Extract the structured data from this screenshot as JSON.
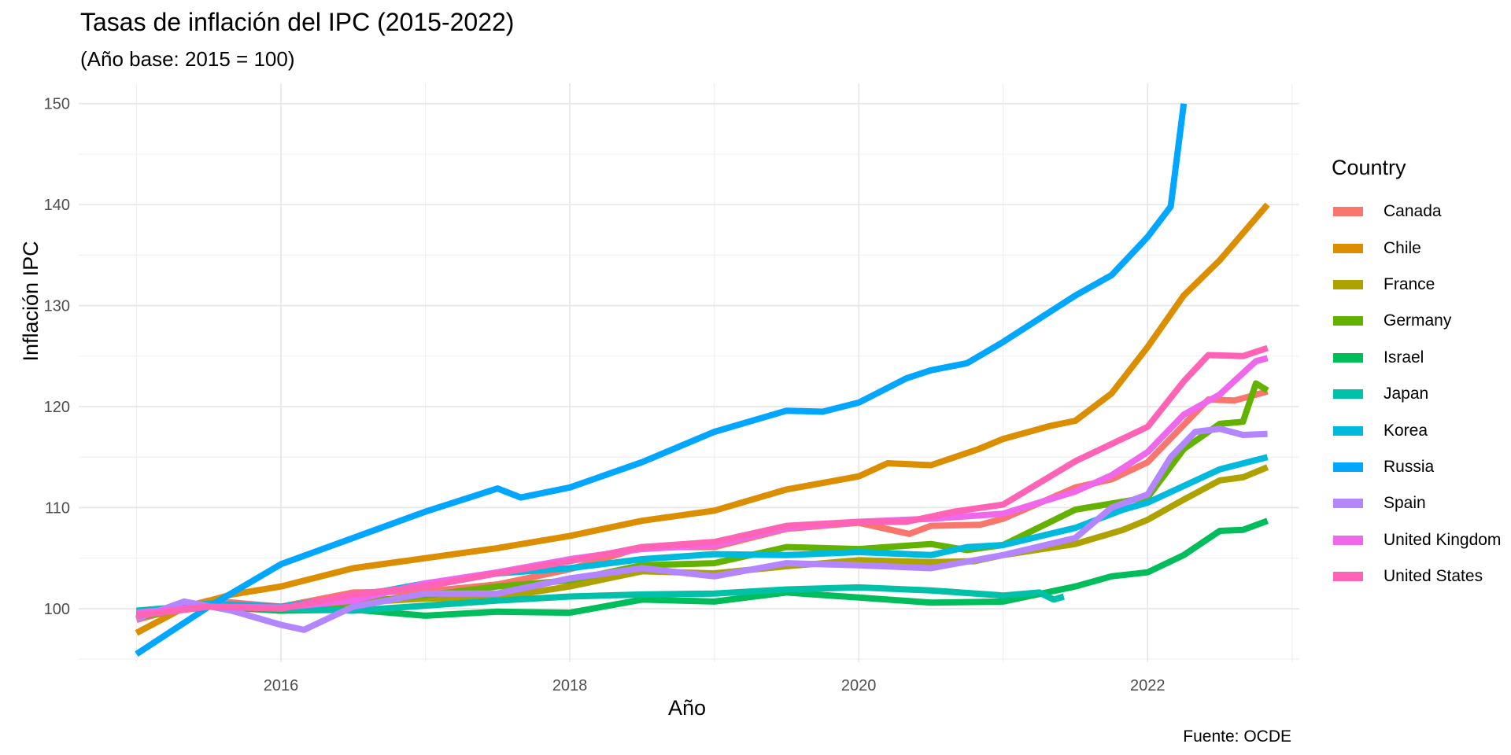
{
  "chart_data": {
    "type": "line",
    "title": "Tasas de inflación del IPC (2015-2022)",
    "subtitle": "(Año base: 2015 = 100)",
    "xlabel": "Año",
    "ylabel": "Inflación IPC",
    "caption": "Fuente: OCDE",
    "xlim": [
      2014.6,
      2023.05
    ],
    "ylim": [
      94.7,
      152
    ],
    "x_ticks": [
      2016,
      2018,
      2020,
      2022
    ],
    "y_ticks": [
      100,
      110,
      120,
      130,
      140,
      150
    ],
    "grid": true,
    "legend_title": "Country",
    "legend_position": "right",
    "series": [
      {
        "name": "Canada",
        "color": "#F8766D",
        "points": [
          [
            2015.0,
            98.9
          ],
          [
            2015.5,
            100.8
          ],
          [
            2016.0,
            100.2
          ],
          [
            2016.5,
            101.6
          ],
          [
            2017.0,
            101.7
          ],
          [
            2017.5,
            102.4
          ],
          [
            2018.0,
            103.9
          ],
          [
            2018.5,
            106.1
          ],
          [
            2019.0,
            106.1
          ],
          [
            2019.5,
            107.9
          ],
          [
            2020.0,
            108.5
          ],
          [
            2020.35,
            107.4
          ],
          [
            2020.5,
            108.2
          ],
          [
            2020.84,
            108.3
          ],
          [
            2021.0,
            108.9
          ],
          [
            2021.5,
            112.0
          ],
          [
            2021.75,
            112.8
          ],
          [
            2022.0,
            114.5
          ],
          [
            2022.42,
            120.7
          ],
          [
            2022.6,
            120.6
          ],
          [
            2022.83,
            121.5
          ]
        ]
      },
      {
        "name": "Chile",
        "color": "#DB8E00",
        "points": [
          [
            2015.0,
            97.6
          ],
          [
            2015.33,
            100.1
          ],
          [
            2015.66,
            101.4
          ],
          [
            2016.0,
            102.2
          ],
          [
            2016.5,
            104.0
          ],
          [
            2017.0,
            105.0
          ],
          [
            2017.5,
            106.0
          ],
          [
            2018.0,
            107.2
          ],
          [
            2018.5,
            108.7
          ],
          [
            2019.0,
            109.7
          ],
          [
            2019.5,
            111.8
          ],
          [
            2020.0,
            113.1
          ],
          [
            2020.2,
            114.4
          ],
          [
            2020.5,
            114.2
          ],
          [
            2020.83,
            115.8
          ],
          [
            2021.0,
            116.8
          ],
          [
            2021.33,
            118.1
          ],
          [
            2021.5,
            118.6
          ],
          [
            2021.75,
            121.3
          ],
          [
            2022.0,
            125.9
          ],
          [
            2022.25,
            131.0
          ],
          [
            2022.5,
            134.5
          ],
          [
            2022.83,
            140.0
          ]
        ]
      },
      {
        "name": "France",
        "color": "#AEA200",
        "points": [
          [
            2015.0,
            99.3
          ],
          [
            2015.5,
            100.2
          ],
          [
            2016.0,
            99.8
          ],
          [
            2016.5,
            100.6
          ],
          [
            2017.0,
            101.0
          ],
          [
            2017.5,
            101.1
          ],
          [
            2018.0,
            102.2
          ],
          [
            2018.5,
            103.7
          ],
          [
            2019.0,
            103.5
          ],
          [
            2019.5,
            104.2
          ],
          [
            2020.0,
            104.8
          ],
          [
            2020.5,
            104.6
          ],
          [
            2020.8,
            104.7
          ],
          [
            2021.0,
            105.3
          ],
          [
            2021.5,
            106.4
          ],
          [
            2021.83,
            107.8
          ],
          [
            2022.0,
            108.8
          ],
          [
            2022.25,
            110.8
          ],
          [
            2022.5,
            112.7
          ],
          [
            2022.66,
            113.0
          ],
          [
            2022.83,
            114.0
          ]
        ]
      },
      {
        "name": "Germany",
        "color": "#64B200",
        "points": [
          [
            2015.0,
            99.1
          ],
          [
            2015.5,
            100.4
          ],
          [
            2016.0,
            99.8
          ],
          [
            2016.5,
            100.6
          ],
          [
            2017.0,
            101.3
          ],
          [
            2017.5,
            102.2
          ],
          [
            2018.0,
            102.8
          ],
          [
            2018.5,
            104.3
          ],
          [
            2019.0,
            104.5
          ],
          [
            2019.5,
            106.1
          ],
          [
            2020.0,
            105.9
          ],
          [
            2020.5,
            106.4
          ],
          [
            2020.75,
            105.8
          ],
          [
            2021.0,
            106.3
          ],
          [
            2021.5,
            109.8
          ],
          [
            2022.0,
            111.0
          ],
          [
            2022.25,
            115.8
          ],
          [
            2022.5,
            118.3
          ],
          [
            2022.66,
            118.5
          ],
          [
            2022.75,
            122.3
          ],
          [
            2022.83,
            121.6
          ]
        ]
      },
      {
        "name": "Israel",
        "color": "#00BD5C",
        "points": [
          [
            2015.0,
            99.4
          ],
          [
            2015.5,
            100.3
          ],
          [
            2016.0,
            99.8
          ],
          [
            2016.5,
            99.9
          ],
          [
            2017.0,
            99.3
          ],
          [
            2017.5,
            99.7
          ],
          [
            2018.0,
            99.6
          ],
          [
            2018.5,
            100.9
          ],
          [
            2019.0,
            100.7
          ],
          [
            2019.5,
            101.6
          ],
          [
            2020.0,
            101.1
          ],
          [
            2020.5,
            100.6
          ],
          [
            2021.0,
            100.7
          ],
          [
            2021.5,
            102.2
          ],
          [
            2021.75,
            103.2
          ],
          [
            2022.0,
            103.6
          ],
          [
            2022.25,
            105.3
          ],
          [
            2022.5,
            107.7
          ],
          [
            2022.66,
            107.8
          ],
          [
            2022.83,
            108.7
          ]
        ]
      },
      {
        "name": "Japan",
        "color": "#00C1A7",
        "points": [
          [
            2015.0,
            99.8
          ],
          [
            2015.5,
            100.4
          ],
          [
            2016.0,
            100.0
          ],
          [
            2016.5,
            99.8
          ],
          [
            2017.0,
            100.3
          ],
          [
            2017.5,
            100.8
          ],
          [
            2018.0,
            101.2
          ],
          [
            2018.5,
            101.4
          ],
          [
            2019.0,
            101.5
          ],
          [
            2019.5,
            101.9
          ],
          [
            2020.0,
            102.1
          ],
          [
            2020.5,
            101.8
          ],
          [
            2021.0,
            101.3
          ],
          [
            2021.25,
            101.6
          ],
          [
            2021.35,
            100.9
          ],
          [
            2021.42,
            101.2
          ]
        ]
      },
      {
        "name": "Korea",
        "color": "#00BADE",
        "points": [
          [
            2015.0,
            99.6
          ],
          [
            2015.5,
            100.5
          ],
          [
            2016.0,
            100.2
          ],
          [
            2016.5,
            101.2
          ],
          [
            2017.0,
            102.5
          ],
          [
            2017.5,
            103.5
          ],
          [
            2018.0,
            104.0
          ],
          [
            2018.5,
            104.9
          ],
          [
            2019.0,
            105.4
          ],
          [
            2019.5,
            105.3
          ],
          [
            2020.0,
            105.6
          ],
          [
            2020.5,
            105.3
          ],
          [
            2020.75,
            106.1
          ],
          [
            2021.0,
            106.3
          ],
          [
            2021.5,
            108.0
          ],
          [
            2021.83,
            109.8
          ],
          [
            2022.0,
            110.5
          ],
          [
            2022.5,
            113.8
          ],
          [
            2022.83,
            115.0
          ]
        ]
      },
      {
        "name": "Russia",
        "color": "#00A6FF",
        "points": [
          [
            2015.0,
            95.5
          ],
          [
            2015.5,
            100.2
          ],
          [
            2016.0,
            104.4
          ],
          [
            2016.5,
            107.0
          ],
          [
            2017.0,
            109.6
          ],
          [
            2017.5,
            111.9
          ],
          [
            2017.66,
            111.0
          ],
          [
            2018.0,
            112.0
          ],
          [
            2018.5,
            114.5
          ],
          [
            2019.0,
            117.5
          ],
          [
            2019.5,
            119.6
          ],
          [
            2019.75,
            119.5
          ],
          [
            2020.0,
            120.4
          ],
          [
            2020.33,
            122.8
          ],
          [
            2020.5,
            123.6
          ],
          [
            2020.75,
            124.3
          ],
          [
            2021.0,
            126.4
          ],
          [
            2021.5,
            131.0
          ],
          [
            2021.75,
            133.0
          ],
          [
            2022.0,
            136.8
          ],
          [
            2022.16,
            139.8
          ],
          [
            2022.25,
            150.0
          ]
        ]
      },
      {
        "name": "Spain",
        "color": "#B385FF",
        "points": [
          [
            2015.0,
            99.0
          ],
          [
            2015.33,
            100.7
          ],
          [
            2015.66,
            99.8
          ],
          [
            2016.0,
            98.4
          ],
          [
            2016.16,
            97.9
          ],
          [
            2016.5,
            100.2
          ],
          [
            2017.0,
            101.5
          ],
          [
            2017.5,
            101.5
          ],
          [
            2018.0,
            103.0
          ],
          [
            2018.5,
            104.0
          ],
          [
            2019.0,
            103.2
          ],
          [
            2019.5,
            104.5
          ],
          [
            2020.0,
            104.3
          ],
          [
            2020.5,
            104.0
          ],
          [
            2021.0,
            105.3
          ],
          [
            2021.5,
            107.0
          ],
          [
            2021.75,
            110.0
          ],
          [
            2022.0,
            111.3
          ],
          [
            2022.16,
            115.0
          ],
          [
            2022.33,
            117.5
          ],
          [
            2022.5,
            117.8
          ],
          [
            2022.66,
            117.2
          ],
          [
            2022.83,
            117.3
          ]
        ]
      },
      {
        "name": "United Kingdom",
        "color": "#EF67EB",
        "points": [
          [
            2015.0,
            99.6
          ],
          [
            2015.5,
            100.2
          ],
          [
            2016.0,
            100.1
          ],
          [
            2016.5,
            100.8
          ],
          [
            2017.0,
            102.5
          ],
          [
            2017.5,
            103.6
          ],
          [
            2018.0,
            104.9
          ],
          [
            2018.5,
            105.9
          ],
          [
            2019.0,
            106.3
          ],
          [
            2019.5,
            108.0
          ],
          [
            2020.0,
            108.6
          ],
          [
            2020.5,
            108.9
          ],
          [
            2021.0,
            109.4
          ],
          [
            2021.5,
            111.6
          ],
          [
            2021.75,
            113.2
          ],
          [
            2022.0,
            115.5
          ],
          [
            2022.25,
            119.2
          ],
          [
            2022.5,
            121.2
          ],
          [
            2022.75,
            124.5
          ],
          [
            2022.83,
            124.8
          ]
        ]
      },
      {
        "name": "United States",
        "color": "#FF63B6",
        "points": [
          [
            2015.0,
            99.3
          ],
          [
            2015.5,
            100.2
          ],
          [
            2016.0,
            100.0
          ],
          [
            2016.5,
            101.4
          ],
          [
            2017.0,
            102.2
          ],
          [
            2017.5,
            103.5
          ],
          [
            2018.0,
            104.7
          ],
          [
            2018.5,
            106.1
          ],
          [
            2019.0,
            106.6
          ],
          [
            2019.5,
            108.2
          ],
          [
            2020.0,
            108.6
          ],
          [
            2020.33,
            108.6
          ],
          [
            2020.66,
            109.6
          ],
          [
            2021.0,
            110.3
          ],
          [
            2021.5,
            114.6
          ],
          [
            2022.0,
            118.0
          ],
          [
            2022.25,
            122.5
          ],
          [
            2022.42,
            125.1
          ],
          [
            2022.66,
            125.0
          ],
          [
            2022.83,
            125.8
          ]
        ]
      }
    ]
  }
}
